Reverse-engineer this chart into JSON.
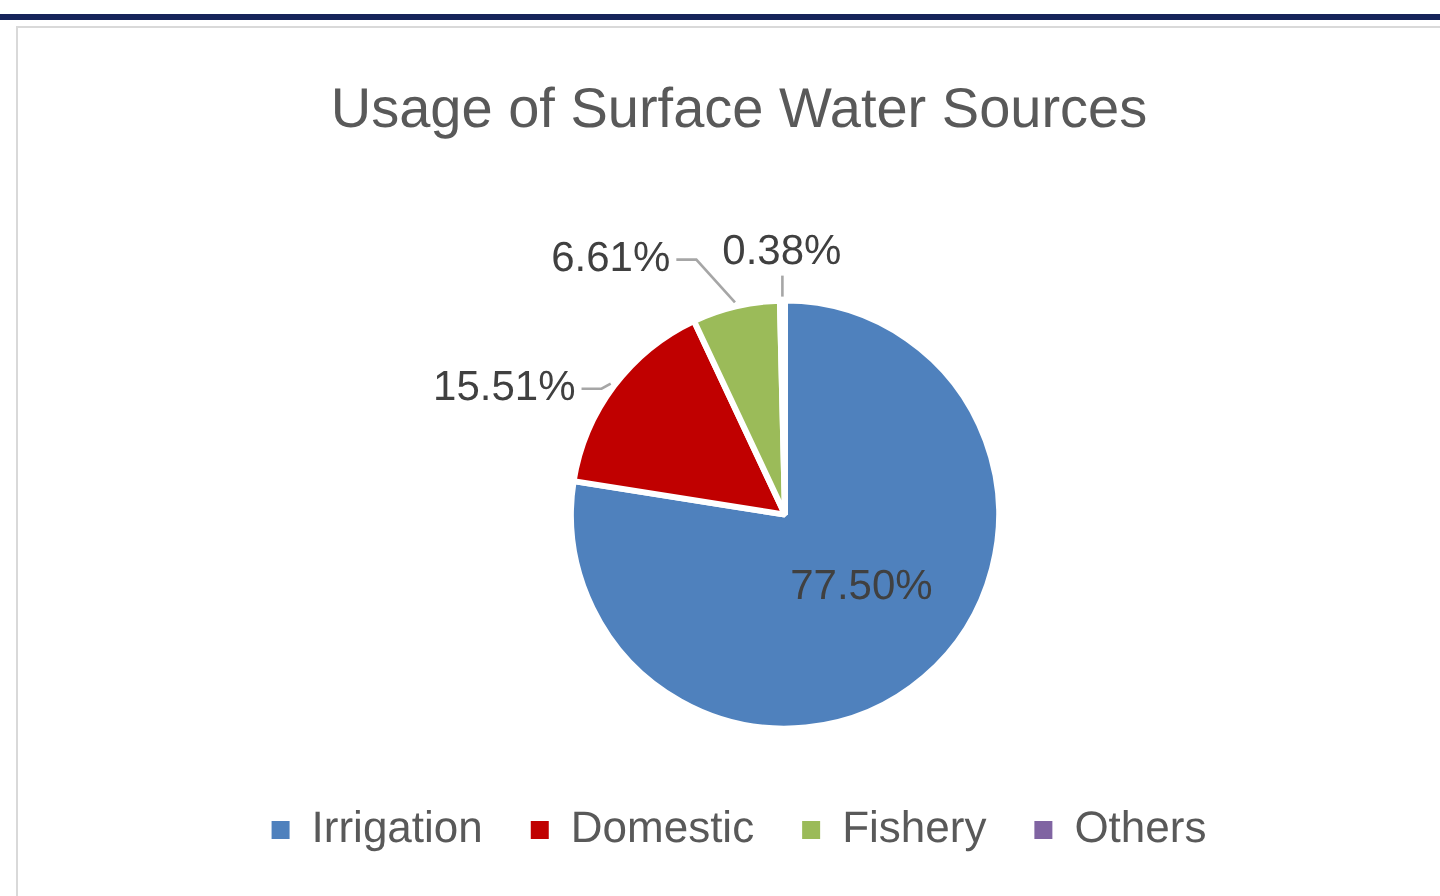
{
  "chart_data": {
    "type": "pie",
    "title": "Usage of Surface Water Sources",
    "categories": [
      "Irrigation",
      "Domestic",
      "Fishery",
      "Others"
    ],
    "values": [
      77.5,
      15.51,
      6.61,
      0.38
    ],
    "colors": [
      "#4f81bd",
      "#c00000",
      "#9bbb59",
      "#8064a2"
    ],
    "value_labels": [
      "77.50%",
      "15.51%",
      "6.61%",
      "0.38%"
    ],
    "legend": "bottom"
  }
}
